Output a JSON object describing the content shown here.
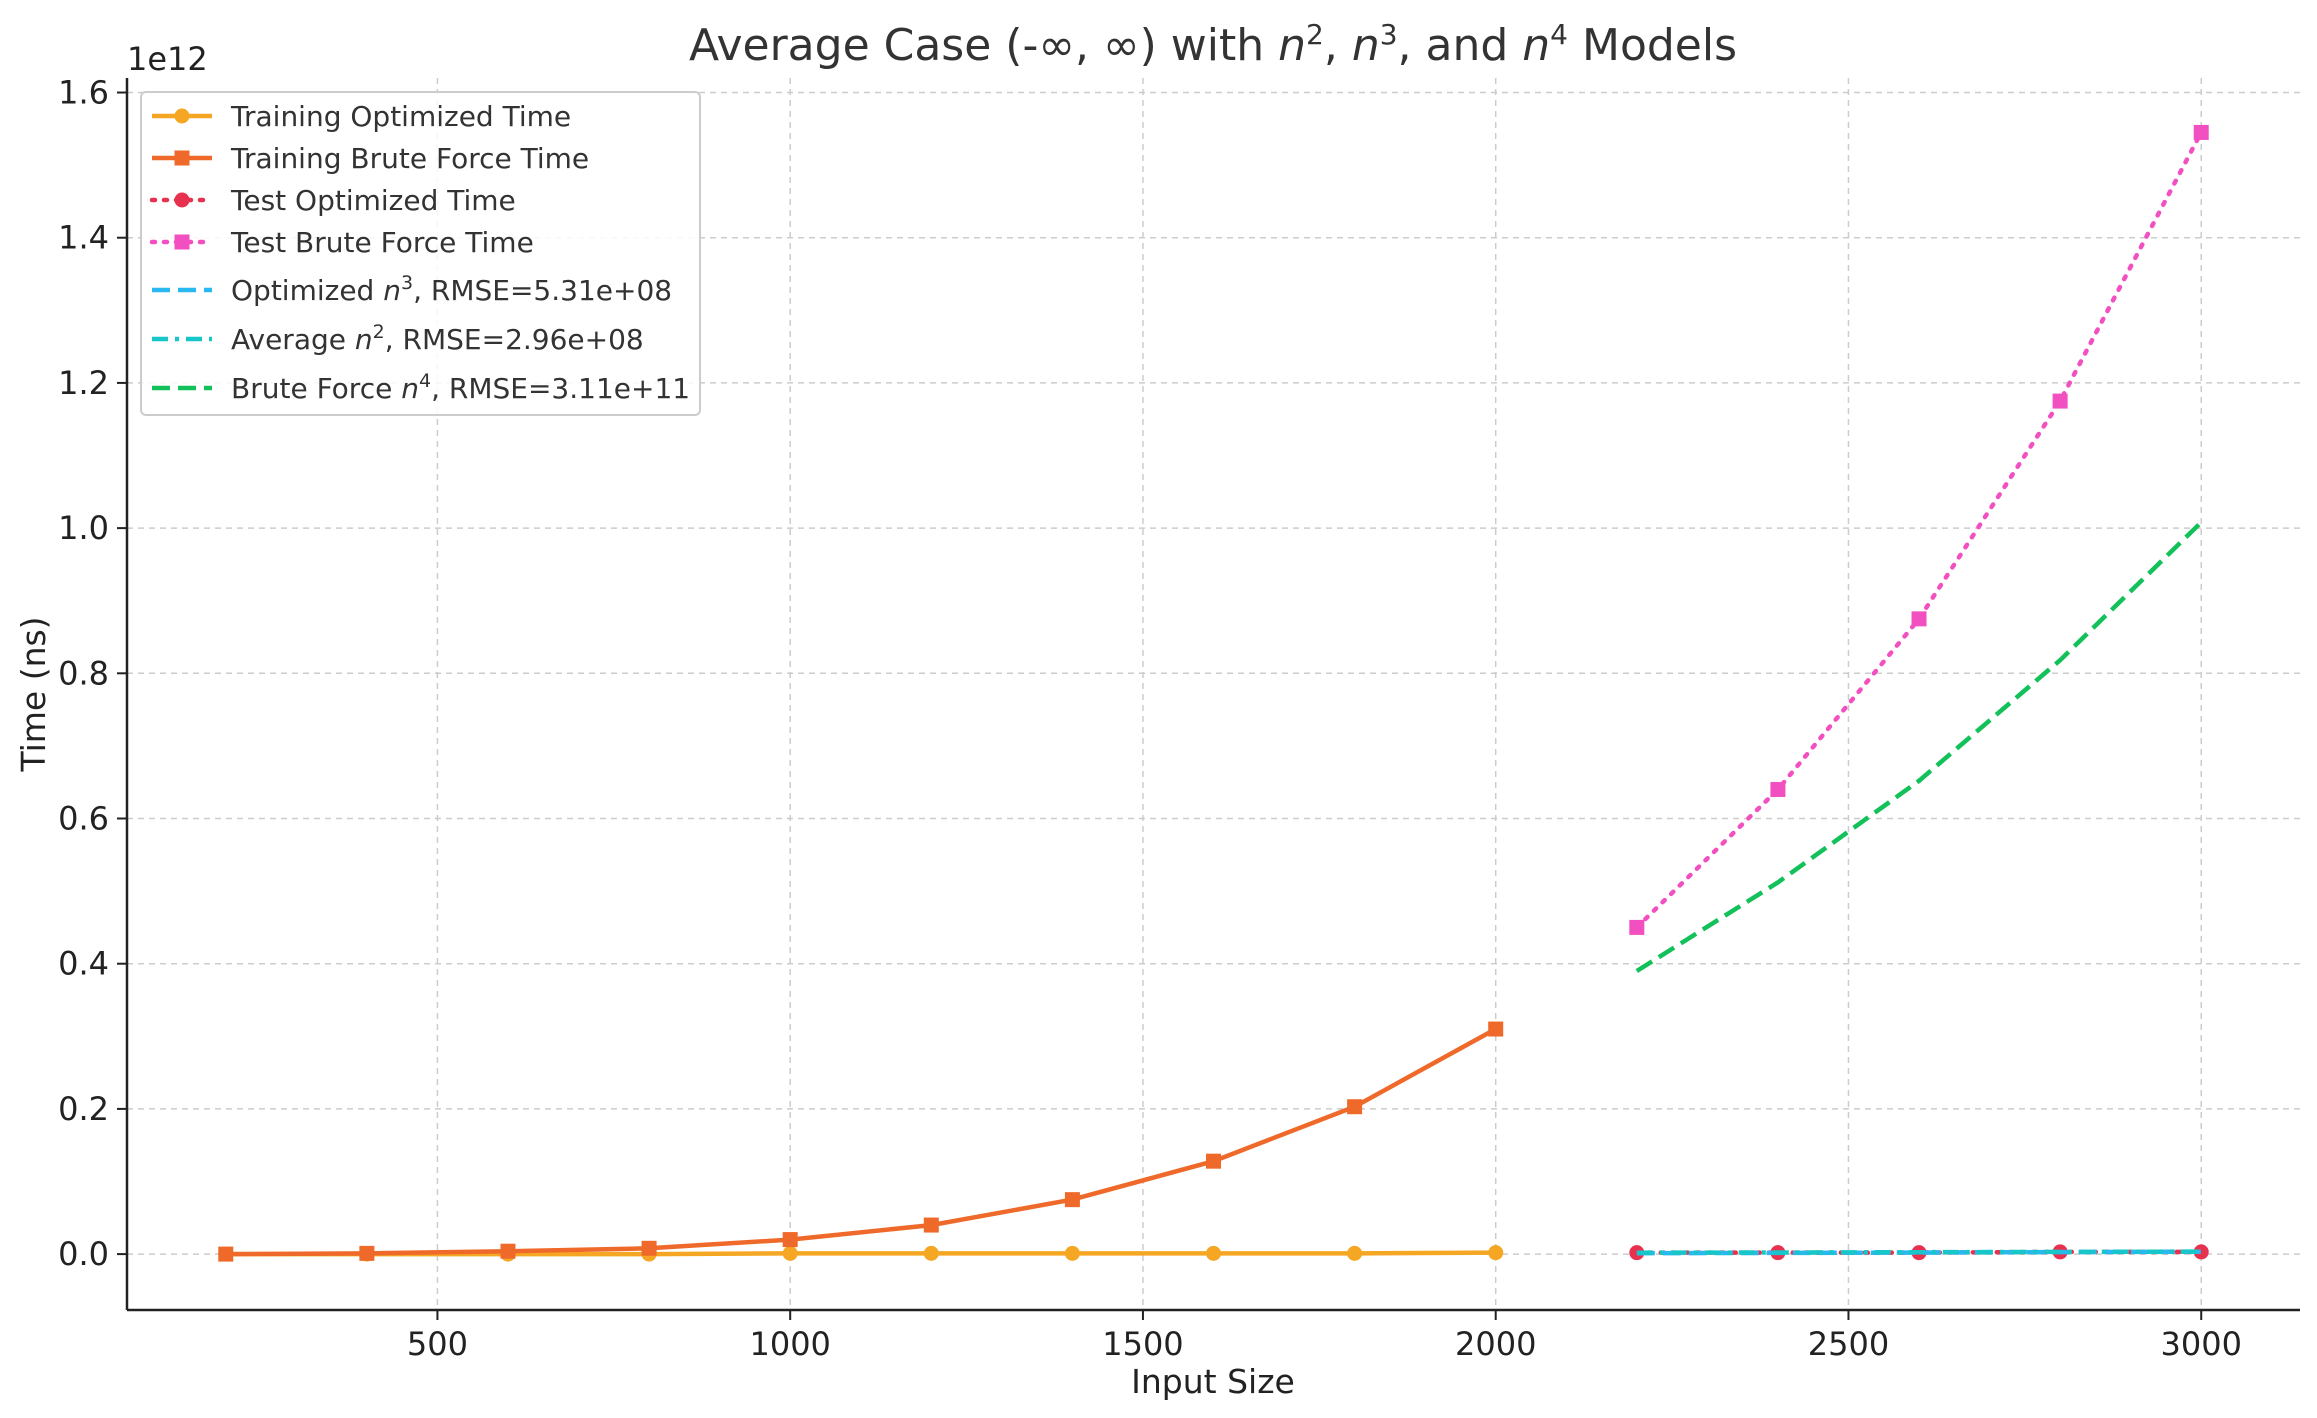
{
  "chart_data": {
    "type": "line",
    "title": {
      "prefix": "Average Case (-∞, ∞) with ",
      "sep1": ", ",
      "sep2": ", and ",
      "suffix": " Models",
      "models": [
        {
          "base": "n",
          "exp": "2"
        },
        {
          "base": "n",
          "exp": "3"
        },
        {
          "base": "n",
          "exp": "4"
        }
      ]
    },
    "xlabel": "Input Size",
    "ylabel": "Time (ns)",
    "y_offset_label": "1e12",
    "xlim": [
      60,
      3140
    ],
    "ylim": [
      -77000000000.0,
      1620000000000.0
    ],
    "x_ticks": [
      500,
      1000,
      1500,
      2000,
      2500,
      3000
    ],
    "y_ticks": [
      0,
      200000000000.0,
      400000000000.0,
      600000000000.0,
      800000000000.0,
      1000000000000.0,
      1200000000000.0,
      1400000000000.0,
      1600000000000.0
    ],
    "y_tick_labels": [
      "0.0",
      "0.2",
      "0.4",
      "0.6",
      "0.8",
      "1.0",
      "1.2",
      "1.4",
      "1.6"
    ],
    "grid": true,
    "legend_position": "top-left",
    "series": [
      {
        "name": "Training Optimized Time",
        "color": "#f5a623",
        "style": "solid",
        "marker": "circle",
        "x": [
          200,
          400,
          600,
          800,
          1000,
          1200,
          1400,
          1600,
          1800,
          2000
        ],
        "y": [
          0.0,
          0.0,
          0.0,
          0.0,
          1000000000.0,
          1000000000.0,
          1000000000.0,
          1000000000.0,
          1000000000.0,
          2000000000.0
        ]
      },
      {
        "name": "Training Brute Force Time",
        "color": "#ef6a2a",
        "style": "solid",
        "marker": "square",
        "x": [
          200,
          400,
          600,
          800,
          1000,
          1200,
          1400,
          1600,
          1800,
          2000
        ],
        "y": [
          0.0,
          1000000000.0,
          4000000000.0,
          8000000000.0,
          20000000000.0,
          40000000000.0,
          75000000000.0,
          128000000000.0,
          203000000000.0,
          310000000000.0
        ]
      },
      {
        "name": "Test Optimized Time",
        "color": "#e8304f",
        "style": "dotted",
        "marker": "circle",
        "x": [
          2200,
          2400,
          2600,
          2800,
          3000
        ],
        "y": [
          2000000000.0,
          2000000000.0,
          2000000000.0,
          3000000000.0,
          3000000000.0
        ]
      },
      {
        "name": "Test Brute Force Time",
        "color": "#f250c0",
        "style": "dotted",
        "marker": "square",
        "x": [
          2200,
          2400,
          2600,
          2800,
          3000
        ],
        "y": [
          450000000000.0,
          640000000000.0,
          875000000000.0,
          1175000000000.0,
          1545000000000.0
        ]
      },
      {
        "name": "Optimized n3",
        "legend": {
          "base": "n",
          "exp": "3",
          "prefix": "Optimized ",
          "suffix": ", RMSE=5.31e+08"
        },
        "color": "#2ab8f0",
        "style": "dashed",
        "marker": "none",
        "x": [
          2200,
          2400,
          2600,
          2800,
          3000
        ],
        "y": [
          1300000000.0,
          1700000000.0,
          2100000000.0,
          2700000000.0,
          3300000000.0
        ]
      },
      {
        "name": "Average n2",
        "legend": {
          "base": "n",
          "exp": "2",
          "prefix": "Average ",
          "suffix": ", RMSE=2.96e+08"
        },
        "color": "#17c6c8",
        "style": "dashdot",
        "marker": "none",
        "x": [
          2200,
          2400,
          2600,
          2800,
          3000
        ],
        "y": [
          1900000000.0,
          2200000000.0,
          2600000000.0,
          3000000000.0,
          3500000000.0
        ]
      },
      {
        "name": "Brute Force n4",
        "legend": {
          "base": "n",
          "exp": "4",
          "prefix": "Brute Force ",
          "suffix": ", RMSE=3.11e+11"
        },
        "color": "#13c15a",
        "style": "dashed",
        "marker": "none",
        "x": [
          2200,
          2400,
          2600,
          2800,
          3000
        ],
        "y": [
          390000000000.0,
          512000000000.0,
          652000000000.0,
          818000000000.0,
          1008000000000.0
        ]
      }
    ]
  }
}
